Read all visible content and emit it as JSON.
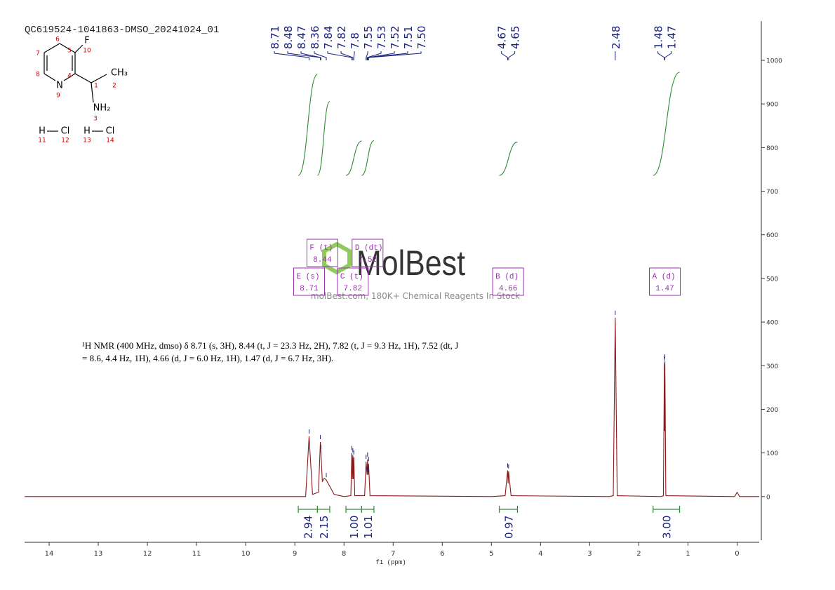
{
  "chart_data": {
    "type": "nmr",
    "title": "QC619524-1041863-DMSO_20241024_01",
    "xlabel": "f1 (ppm)",
    "x": [
      14.5,
      9.0,
      8.78,
      8.71,
      8.64,
      8.52,
      8.48,
      8.44,
      8.4,
      8.36,
      8.2,
      8.0,
      7.86,
      7.84,
      7.83,
      7.82,
      7.81,
      7.8,
      7.78,
      7.58,
      7.55,
      7.53,
      7.52,
      7.51,
      7.5,
      7.47,
      5.0,
      4.72,
      4.67,
      4.66,
      4.65,
      4.6,
      2.6,
      2.52,
      2.48,
      2.44,
      1.55,
      1.5,
      1.48,
      1.475,
      1.47,
      1.45,
      0.05,
      0.0,
      -0.05,
      -0.45
    ],
    "values": [
      0,
      0,
      0,
      138,
      5,
      10,
      125,
      35,
      42,
      38,
      5,
      0,
      2,
      100,
      40,
      95,
      40,
      90,
      2,
      2,
      80,
      50,
      85,
      50,
      75,
      2,
      0,
      2,
      60,
      30,
      58,
      2,
      0,
      2,
      410,
      2,
      0,
      2,
      305,
      150,
      310,
      2,
      0,
      10,
      0,
      0
    ],
    "color": "#8b1a1a",
    "xlim": [
      14.5,
      -0.45
    ],
    "xticks": [
      14,
      13,
      12,
      11,
      10,
      9,
      8,
      7,
      6,
      5,
      4,
      3,
      2,
      1,
      0
    ],
    "ylim": [
      -100,
      1090
    ],
    "yticks": [
      0,
      100,
      200,
      300,
      400,
      500,
      600,
      700,
      800,
      900,
      1000
    ],
    "peaks": [
      8.71,
      8.48,
      8.47,
      8.36,
      7.84,
      7.82,
      7.8,
      7.55,
      7.53,
      7.52,
      7.51,
      {
        "value": 7.5,
        "label": "7.50"
      },
      4.67,
      4.65,
      2.48,
      1.48,
      1.47
    ],
    "peak_color": "#1a237e",
    "integrals": {
      "values": [
        2.94,
        2.15,
        {
          "value": 1,
          "label": "1.00"
        },
        1.01,
        0.97,
        {
          "value": 3,
          "label": "3.00"
        }
      ],
      "ranges": [
        [
          8.93,
          8.54
        ],
        [
          8.54,
          8.29
        ],
        [
          7.96,
          7.64
        ],
        [
          7.64,
          7.39
        ],
        [
          4.84,
          4.47
        ],
        [
          1.71,
          1.17
        ]
      ],
      "color": "#2e8b2e"
    },
    "multiplets": [
      {
        "name": "E (s)",
        "shift": 8.71
      },
      {
        "name": "F (t)",
        "shift": 8.44
      },
      {
        "name": "C (t)",
        "shift": 7.82
      },
      {
        "name": "D (dt)",
        "shift": 7.52
      },
      {
        "name": "B (d)",
        "shift": 4.66
      },
      {
        "name": "A (d)",
        "shift": 1.47
      }
    ],
    "multiplet_color": "#9b30b0",
    "description": [
      "¹H NMR (400 MHz, dmso) δ 8.71 (s, 3H), 8.44 (t, J = 23.3 Hz, 2H), 7.82 (t, J = 9.3 Hz, 1H), 7.52 (dt, J",
      "= 8.6, 4.4 Hz, 1H), 4.66 (d, J = 6.0 Hz, 1H), 1.47 (d, J = 6.7 Hz, 3H)."
    ]
  },
  "structure": {
    "atoms": [
      "F",
      "CH₃",
      "N",
      "NH₂",
      "H",
      "Cl",
      "H",
      "Cl"
    ],
    "numbers": [
      "6",
      "10",
      "7",
      "5",
      "2",
      "8",
      "4",
      "1",
      "9",
      "3",
      "11",
      "12",
      "13",
      "14"
    ]
  },
  "watermark": {
    "logo": "MolBest",
    "tagline": "molBest.com, 180K+ Chemical Reagents In Stock"
  }
}
